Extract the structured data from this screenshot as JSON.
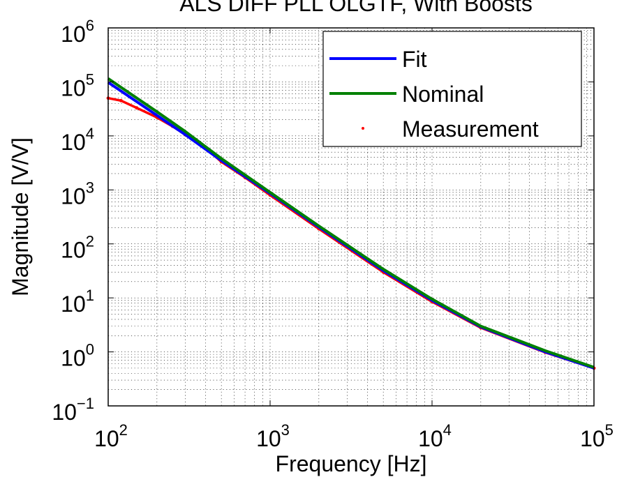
{
  "chart_data": {
    "type": "line",
    "title": "ALS DIFF PLL OLGTF, With Boosts",
    "xlabel": "Frequency [Hz]",
    "ylabel": "Magnitude [V/V]",
    "xscale": "log",
    "yscale": "log",
    "xlim": [
      100,
      100000
    ],
    "ylim": [
      0.1,
      1000000
    ],
    "grid": "on (major and minor, dotted)",
    "legend_position": "top-right",
    "x_ticks": [
      {
        "base": "10",
        "exp": "2",
        "value": 100
      },
      {
        "base": "10",
        "exp": "3",
        "value": 1000
      },
      {
        "base": "10",
        "exp": "4",
        "value": 10000
      },
      {
        "base": "10",
        "exp": "5",
        "value": 100000
      }
    ],
    "y_ticks": [
      {
        "base": "10",
        "exp": "−1",
        "value": 0.1
      },
      {
        "base": "10",
        "exp": "0",
        "value": 1
      },
      {
        "base": "10",
        "exp": "1",
        "value": 10
      },
      {
        "base": "10",
        "exp": "2",
        "value": 100
      },
      {
        "base": "10",
        "exp": "3",
        "value": 1000
      },
      {
        "base": "10",
        "exp": "4",
        "value": 10000
      },
      {
        "base": "10",
        "exp": "5",
        "value": 100000
      },
      {
        "base": "10",
        "exp": "6",
        "value": 1000000
      }
    ],
    "series": [
      {
        "name": "Fit",
        "color": "#0000ff",
        "style": "line",
        "x": [
          100,
          200,
          300,
          500,
          1000,
          2000,
          5000,
          10000,
          20000,
          50000,
          100000
        ],
        "y": [
          98000,
          24000,
          10500,
          3500,
          860,
          205,
          32,
          9,
          2.9,
          1.0,
          0.5
        ]
      },
      {
        "name": "Nominal",
        "color": "#008000",
        "style": "line",
        "x": [
          100,
          200,
          300,
          500,
          1000,
          2000,
          5000,
          10000,
          20000,
          50000,
          100000
        ],
        "y": [
          115000,
          28000,
          12000,
          3800,
          900,
          215,
          34,
          9.5,
          3.0,
          1.05,
          0.52
        ]
      },
      {
        "name": "Measurement",
        "color": "#ff0000",
        "style": "markers",
        "x": [
          100,
          120,
          150,
          200,
          250,
          300,
          400,
          500,
          700,
          1000,
          2000,
          5000,
          10000,
          20000,
          50000,
          100000
        ],
        "y": [
          50000,
          45000,
          33000,
          22000,
          15000,
          10500,
          6000,
          3300,
          1700,
          800,
          190,
          30,
          8.5,
          2.8,
          0.98,
          0.5
        ]
      }
    ]
  }
}
